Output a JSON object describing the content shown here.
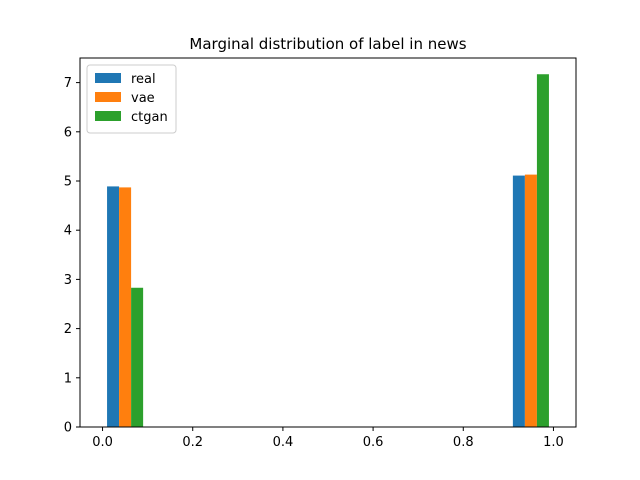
{
  "chart_data": {
    "type": "bar",
    "title": "Marginal distribution of label in news",
    "xlabel": "",
    "ylabel": "",
    "xlim": [
      -0.05,
      1.05
    ],
    "ylim": [
      0,
      7.5
    ],
    "xticks": [
      0.0,
      0.2,
      0.4,
      0.6,
      0.8,
      1.0
    ],
    "xtick_labels": [
      "0.0",
      "0.2",
      "0.4",
      "0.6",
      "0.8",
      "1.0"
    ],
    "yticks": [
      0,
      1,
      2,
      3,
      4,
      5,
      6,
      7
    ],
    "ytick_labels": [
      "0",
      "1",
      "2",
      "3",
      "4",
      "5",
      "6",
      "7"
    ],
    "grid": false,
    "legend": "top-left",
    "bin_edges": [
      0.0,
      0.1,
      0.9,
      1.0
    ],
    "series": [
      {
        "name": "real",
        "color": "#1f77b4",
        "values": [
          4.89,
          0,
          5.11
        ]
      },
      {
        "name": "vae",
        "color": "#ff7f0e",
        "values": [
          4.87,
          0,
          5.13
        ]
      },
      {
        "name": "ctgan",
        "color": "#2ca02c",
        "values": [
          2.83,
          0,
          7.17
        ]
      }
    ]
  }
}
